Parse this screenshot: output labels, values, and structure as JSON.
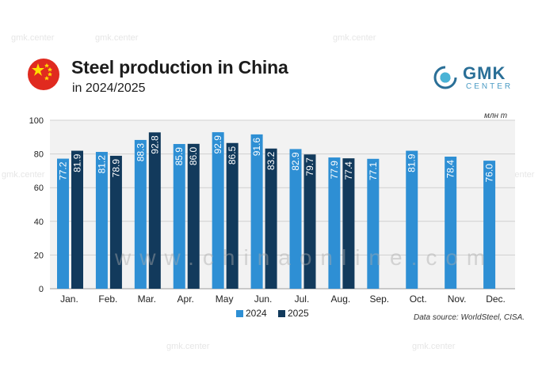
{
  "header": {
    "title": "Steel production in China",
    "subtitle": "in 2024/2025",
    "unit": "млн т"
  },
  "logo": {
    "name": "GMK",
    "sub": "CENTER"
  },
  "watermarks": {
    "repeat_text": "gmk.center",
    "site_text": "www.chinaonline.com"
  },
  "colors": {
    "series_2024": "#2e8fd4",
    "series_2025": "#123a5c",
    "brand": "#2a6f97",
    "flag_red": "#e02a1f",
    "flag_star": "#ffde00"
  },
  "legend": {
    "items": [
      {
        "label": "2024"
      },
      {
        "label": "2025"
      }
    ]
  },
  "source": "Data source: WorldSteel, CISA.",
  "chart_data": {
    "type": "bar",
    "title": "Steel production in China",
    "subtitle": "in 2024/2025",
    "ylabel": "млн т",
    "ylim": [
      0,
      100
    ],
    "yticks": [
      0,
      20,
      40,
      60,
      80,
      100
    ],
    "grid": true,
    "categories": [
      "Jan.",
      "Feb.",
      "Mar.",
      "Apr.",
      "May",
      "Jun.",
      "Jul.",
      "Aug.",
      "Sep.",
      "Oct.",
      "Nov.",
      "Dec."
    ],
    "series": [
      {
        "name": "2024",
        "values": [
          77.2,
          81.2,
          88.3,
          85.9,
          92.9,
          91.6,
          82.9,
          77.9,
          77.1,
          81.9,
          78.4,
          76.0
        ]
      },
      {
        "name": "2025",
        "values": [
          81.9,
          78.9,
          92.8,
          86.0,
          86.5,
          83.2,
          79.7,
          77.4,
          null,
          null,
          null,
          null
        ]
      }
    ],
    "legend_position": "bottom"
  }
}
